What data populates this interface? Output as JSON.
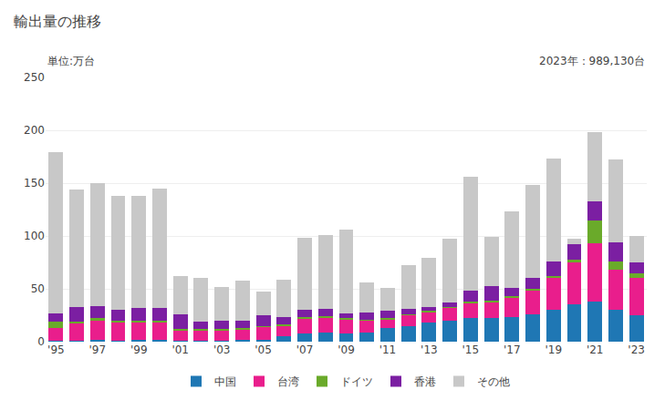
{
  "chart_data": {
    "type": "bar",
    "stacked": true,
    "title": "輸出量の推移",
    "subtitle": "単位:万台",
    "annotation": "2023年：989,130台",
    "categories": [
      "'95",
      null,
      "'97",
      null,
      "'99",
      null,
      "'01",
      null,
      "'03",
      null,
      "'05",
      null,
      "'07",
      null,
      "'09",
      null,
      "'11",
      null,
      "'13",
      null,
      "'15",
      null,
      "'17",
      null,
      "'19",
      null,
      "'21",
      null,
      "'23"
    ],
    "series": [
      {
        "name": "中国",
        "color": "#1f77b4",
        "values": [
          1,
          1,
          2,
          1,
          2,
          2,
          1,
          1,
          1,
          2,
          2,
          5,
          8,
          9,
          8,
          9,
          13,
          15,
          18,
          20,
          22,
          22,
          23,
          26,
          30,
          35,
          38,
          30,
          25
        ]
      },
      {
        "name": "台湾",
        "color": "#e91e8c",
        "values": [
          12,
          16,
          18,
          17,
          16,
          16,
          10,
          10,
          10,
          10,
          12,
          10,
          14,
          14,
          13,
          11,
          8,
          10,
          10,
          12,
          15,
          15,
          18,
          22,
          30,
          40,
          55,
          38,
          35
        ]
      },
      {
        "name": "ドイツ",
        "color": "#6aaa2a",
        "values": [
          6,
          2,
          2,
          2,
          2,
          2,
          1,
          1,
          1,
          1,
          1,
          1,
          1,
          1,
          1,
          1,
          1,
          1,
          1,
          1,
          1,
          2,
          2,
          2,
          2,
          3,
          22,
          8,
          5
        ]
      },
      {
        "name": "香港",
        "color": "#7b1fa2",
        "values": [
          8,
          14,
          12,
          10,
          12,
          12,
          14,
          7,
          8,
          7,
          10,
          7,
          7,
          7,
          5,
          7,
          7,
          5,
          4,
          4,
          10,
          14,
          8,
          10,
          14,
          14,
          18,
          18,
          10
        ]
      },
      {
        "name": "その他",
        "color": "#c8c8c8",
        "values": [
          152,
          111,
          116,
          108,
          106,
          113,
          36,
          41,
          32,
          38,
          22,
          36,
          68,
          70,
          79,
          28,
          22,
          41,
          46,
          60,
          108,
          46,
          72,
          88,
          97,
          5,
          65,
          78,
          25
        ]
      }
    ],
    "ylim": [
      0,
      250
    ],
    "yticks": [
      0,
      50,
      100,
      150,
      200,
      250
    ],
    "grid": true,
    "legend": "bottom"
  }
}
